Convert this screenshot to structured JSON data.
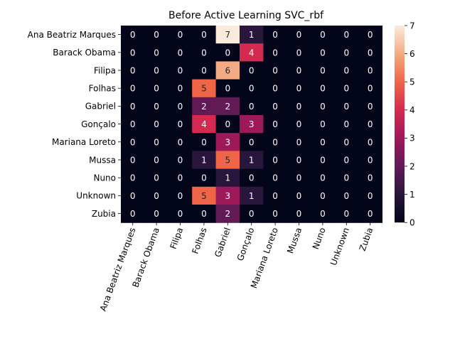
{
  "chart_data": {
    "type": "heatmap",
    "title": "Before Active Learning SVC_rbf",
    "xlabel": "",
    "ylabel": "",
    "row_labels": [
      "Ana Beatriz Marques",
      "Barack Obama",
      "Filipa",
      "Folhas",
      "Gabriel",
      "Gonçalo",
      "Mariana Loreto",
      "Mussa",
      "Nuno",
      "Unknown",
      "Zubia"
    ],
    "col_labels": [
      "Ana Beatriz Marques",
      "Barack Obama",
      "Filipa",
      "Folhas",
      "Gabriel",
      "Gonçalo",
      "Mariana Loreto",
      "Mussa",
      "Nuno",
      "Unknown",
      "Zubia"
    ],
    "values": [
      [
        0,
        0,
        0,
        0,
        7,
        1,
        0,
        0,
        0,
        0,
        0
      ],
      [
        0,
        0,
        0,
        0,
        0,
        4,
        0,
        0,
        0,
        0,
        0
      ],
      [
        0,
        0,
        0,
        0,
        6,
        0,
        0,
        0,
        0,
        0,
        0
      ],
      [
        0,
        0,
        0,
        5,
        0,
        0,
        0,
        0,
        0,
        0,
        0
      ],
      [
        0,
        0,
        0,
        2,
        2,
        0,
        0,
        0,
        0,
        0,
        0
      ],
      [
        0,
        0,
        0,
        4,
        0,
        3,
        0,
        0,
        0,
        0,
        0
      ],
      [
        0,
        0,
        0,
        0,
        3,
        0,
        0,
        0,
        0,
        0,
        0
      ],
      [
        0,
        0,
        0,
        1,
        5,
        1,
        0,
        0,
        0,
        0,
        0
      ],
      [
        0,
        0,
        0,
        0,
        1,
        0,
        0,
        0,
        0,
        0,
        0
      ],
      [
        0,
        0,
        0,
        5,
        3,
        1,
        0,
        0,
        0,
        0,
        0
      ],
      [
        0,
        0,
        0,
        0,
        2,
        0,
        0,
        0,
        0,
        0,
        0
      ]
    ],
    "vmin": 0,
    "vmax": 7,
    "colorbar_ticks": [
      0,
      1,
      2,
      3,
      4,
      5,
      6,
      7
    ],
    "colormap": "rocket",
    "annotations": true,
    "x_tick_rotation_deg": 70,
    "grid": false,
    "colorbar_position": "right"
  }
}
